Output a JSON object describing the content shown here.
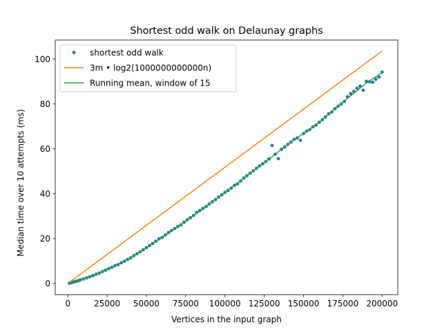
{
  "chart_data": {
    "type": "line",
    "title": "Shortest odd walk on Delaunay graphs",
    "xlabel": "Vertices in the input graph",
    "ylabel": "Median time over 10 attempts (ms)",
    "xlim": [
      -8000,
      210000
    ],
    "ylim": [
      -5,
      108.5
    ],
    "x_ticks": [
      0,
      25000,
      50000,
      75000,
      100000,
      125000,
      150000,
      175000,
      200000
    ],
    "x_tick_labels": [
      "0",
      "25000",
      "50000",
      "75000",
      "100000",
      "125000",
      "150000",
      "175000",
      "200000"
    ],
    "y_ticks": [
      0,
      20,
      40,
      60,
      80,
      100
    ],
    "y_tick_labels": [
      "0",
      "20",
      "40",
      "60",
      "80",
      "100"
    ],
    "grid": false,
    "legend_position": "top-left",
    "series": [
      {
        "name": "shortest odd walk",
        "kind": "scatter",
        "color": "#1f77b4",
        "x": [
          1000,
          2000,
          3000,
          4000,
          5000,
          6000,
          7000,
          8000,
          10000,
          12000,
          14000,
          16000,
          18000,
          20000,
          22000,
          24000,
          26000,
          28000,
          30000,
          32000,
          34000,
          36000,
          38000,
          40000,
          42000,
          44000,
          46000,
          48000,
          50000,
          52000,
          54000,
          56000,
          58000,
          60000,
          62000,
          64000,
          66000,
          68000,
          70000,
          72000,
          74000,
          76000,
          78000,
          80000,
          82000,
          84000,
          86000,
          88000,
          90000,
          92000,
          94000,
          96000,
          98000,
          100000,
          102000,
          104000,
          106000,
          108000,
          110000,
          112000,
          114000,
          116000,
          118000,
          120000,
          122000,
          124000,
          126000,
          128000,
          130000,
          132000,
          134000,
          136000,
          138000,
          140000,
          142000,
          144000,
          146000,
          148000,
          150000,
          152000,
          154000,
          156000,
          158000,
          160000,
          162000,
          164000,
          166000,
          168000,
          170000,
          172000,
          174000,
          176000,
          178000,
          180000,
          182000,
          184000,
          186000,
          188000,
          190000,
          192000,
          194000,
          196000,
          198000,
          200000
        ],
        "y": [
          0.1,
          0.3,
          0.5,
          0.7,
          0.9,
          1.1,
          1.3,
          1.6,
          2.0,
          2.5,
          3.0,
          3.5,
          4.1,
          4.6,
          5.3,
          5.9,
          6.6,
          7.2,
          7.9,
          8.4,
          9.2,
          9.9,
          10.7,
          11.4,
          12.4,
          13.2,
          14.1,
          15.0,
          16.0,
          16.9,
          17.8,
          18.8,
          19.9,
          20.5,
          21.6,
          22.7,
          23.6,
          24.5,
          25.4,
          26.1,
          27.3,
          28.4,
          29.3,
          30.3,
          31.7,
          32.5,
          33.4,
          34.3,
          35.4,
          36.4,
          37.4,
          38.5,
          39.5,
          40.6,
          41.5,
          42.5,
          43.7,
          44.4,
          45.7,
          47.0,
          48.0,
          49.1,
          50.2,
          51.3,
          52.4,
          53.3,
          54.3,
          55.5,
          61.5,
          57.6,
          55.6,
          59.8,
          60.8,
          62.0,
          63.0,
          64.2,
          64.9,
          63.8,
          66.8,
          67.9,
          68.6,
          69.8,
          70.6,
          71.8,
          73.0,
          74.2,
          75.6,
          76.4,
          77.9,
          79.0,
          80.0,
          81.1,
          83.2,
          84.6,
          85.6,
          87.0,
          87.9,
          86.1,
          90.1,
          89.9,
          89.7,
          91.0,
          92.0,
          94.2
        ]
      },
      {
        "name": "3m • log2(1000000000000n)",
        "kind": "line",
        "color": "#ff7f0e",
        "x": [
          1000,
          200000
        ],
        "y": [
          0.5,
          103.6
        ]
      },
      {
        "name": "Running mean, window of 15",
        "kind": "line",
        "color": "#2ca02c",
        "x": [
          1000,
          10000,
          20000,
          30000,
          40000,
          50000,
          60000,
          70000,
          80000,
          90000,
          100000,
          110000,
          120000,
          130000,
          140000,
          150000,
          160000,
          170000,
          180000,
          190000,
          200000
        ],
        "y": [
          0.1,
          2.0,
          4.6,
          7.9,
          11.4,
          16.0,
          20.5,
          25.4,
          30.3,
          35.4,
          40.6,
          45.8,
          51.2,
          56.5,
          62.0,
          66.9,
          71.9,
          77.9,
          83.6,
          89.3,
          94.0
        ]
      }
    ]
  }
}
